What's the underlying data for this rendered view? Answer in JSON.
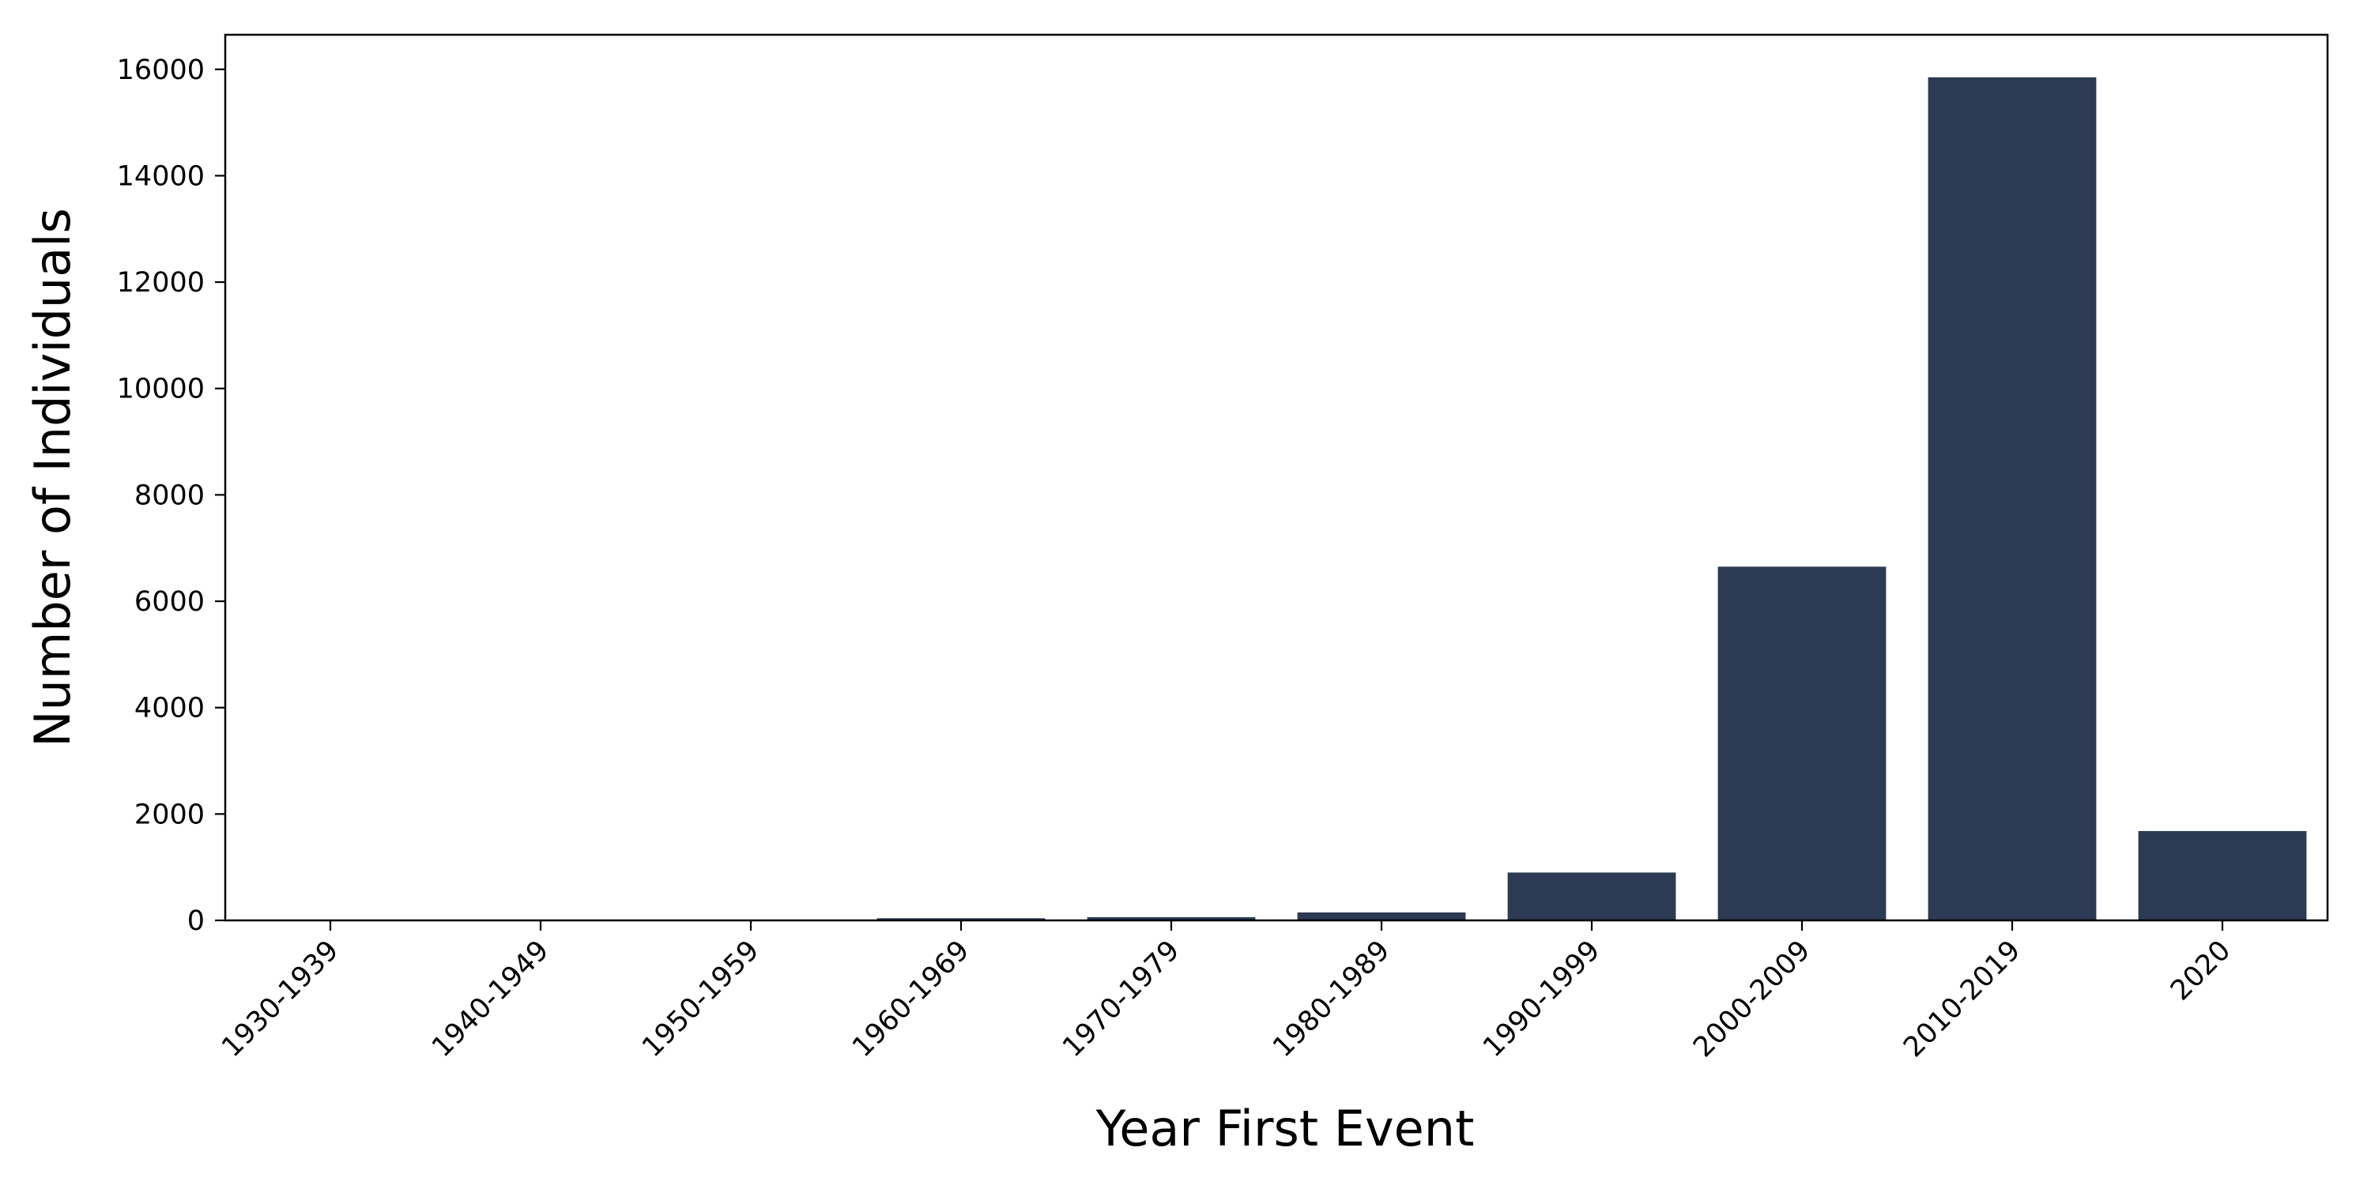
{
  "chart_data": {
    "type": "bar",
    "xlabel": "Year First Event",
    "ylabel": "Number of Individuals",
    "categories": [
      "1930-1939",
      "1940-1949",
      "1950-1959",
      "1960-1969",
      "1970-1979",
      "1980-1989",
      "1990-1999",
      "2000-2009",
      "2010-2019",
      "2020"
    ],
    "values": [
      2,
      4,
      8,
      40,
      60,
      150,
      900,
      6650,
      15850,
      1680
    ],
    "ylim": [
      0,
      16650
    ],
    "yticks": [
      0,
      2000,
      4000,
      6000,
      8000,
      10000,
      12000,
      14000,
      16000
    ],
    "bar_color": "#2d3a53",
    "grid": false,
    "legend": "none"
  }
}
